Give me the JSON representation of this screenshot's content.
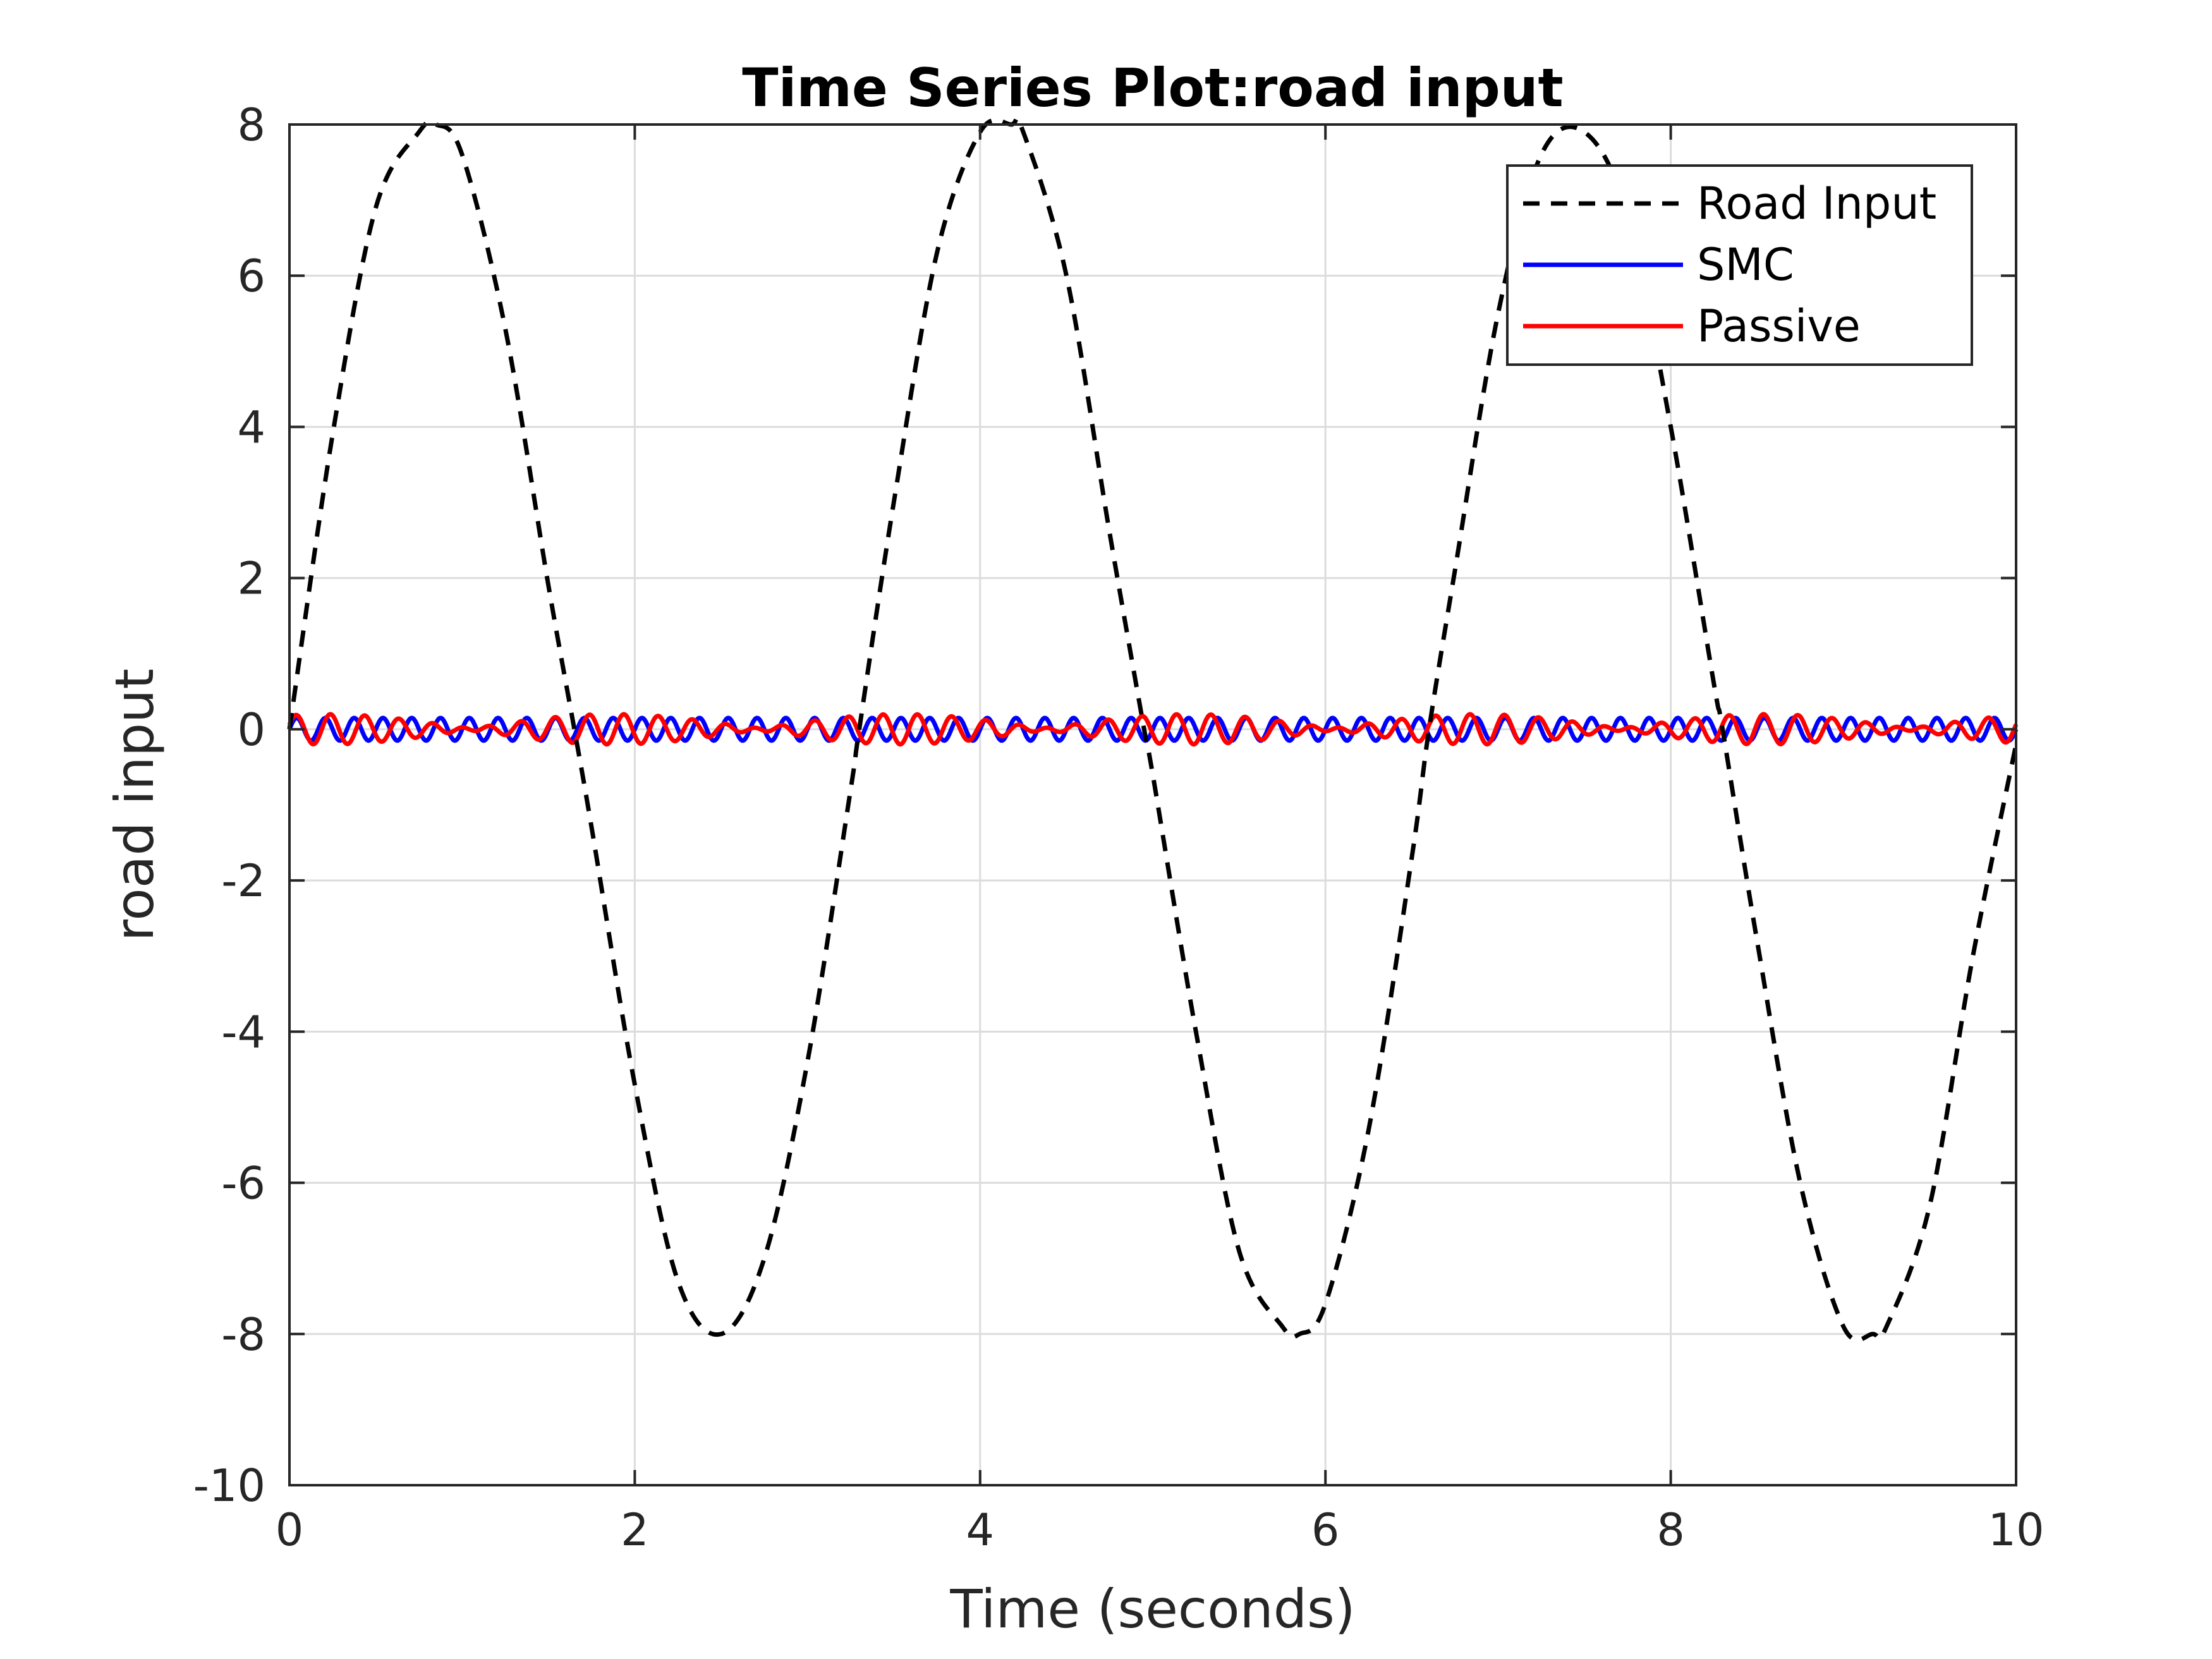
{
  "chart_data": {
    "type": "line",
    "title": "Time Series Plot:road input",
    "xlabel": "Time (seconds)",
    "ylabel": "road input",
    "xlim": [
      0,
      10
    ],
    "ylim": [
      -10,
      8
    ],
    "xticks": [
      0,
      2,
      4,
      6,
      8,
      10
    ],
    "xtick_labels": [
      "0",
      "2",
      "4",
      "6",
      "8",
      "10"
    ],
    "yticks": [
      -10,
      -8,
      -6,
      -4,
      -2,
      0,
      2,
      4,
      6,
      8
    ],
    "ytick_labels": [
      "-10",
      "-8",
      "-6",
      "-4",
      "-2",
      "0",
      "2",
      "4",
      "6",
      "8"
    ],
    "grid": true,
    "legend_position": "top-right",
    "series": [
      {
        "name": "Road Input",
        "color": "#000000",
        "style": "dashed",
        "x": [
          0,
          0.25,
          0.5,
          0.75,
          0.85,
          1.0,
          1.25,
          1.5,
          1.65,
          1.75,
          2.0,
          2.25,
          2.5,
          2.75,
          3.0,
          3.25,
          3.3,
          3.5,
          3.75,
          4.0,
          4.18,
          4.25,
          4.5,
          4.75,
          4.95,
          5.0,
          5.25,
          5.5,
          5.75,
          5.85,
          6.0,
          6.25,
          6.5,
          6.6,
          6.75,
          7.0,
          7.25,
          7.5,
          7.75,
          8.0,
          8.25,
          8.3,
          8.5,
          8.75,
          9.0,
          9.17,
          9.25,
          9.5,
          9.75,
          10.0
        ],
        "y": [
          0,
          3.9,
          6.9,
          7.9,
          8.0,
          7.6,
          5.3,
          1.9,
          0.0,
          -1.3,
          -4.7,
          -7.3,
          -8.0,
          -7.0,
          -4.4,
          -0.8,
          0.0,
          3.0,
          6.3,
          7.9,
          8.0,
          7.9,
          6.0,
          2.6,
          0.0,
          -0.6,
          -4.0,
          -6.9,
          -7.9,
          -8.0,
          -7.6,
          -5.3,
          -1.7,
          0.0,
          2.1,
          5.5,
          7.6,
          7.9,
          6.8,
          4.0,
          0.6,
          0.0,
          -2.8,
          -6.0,
          -7.9,
          -8.0,
          -7.9,
          -6.3,
          -3.0,
          -0.2
        ]
      },
      {
        "name": "SMC",
        "color": "#0000ff",
        "style": "solid",
        "amplitude": 0.15,
        "mean": 0
      },
      {
        "name": "Passive",
        "color": "#ff0000",
        "style": "solid",
        "amplitude": 0.2,
        "mean": 0
      }
    ]
  }
}
